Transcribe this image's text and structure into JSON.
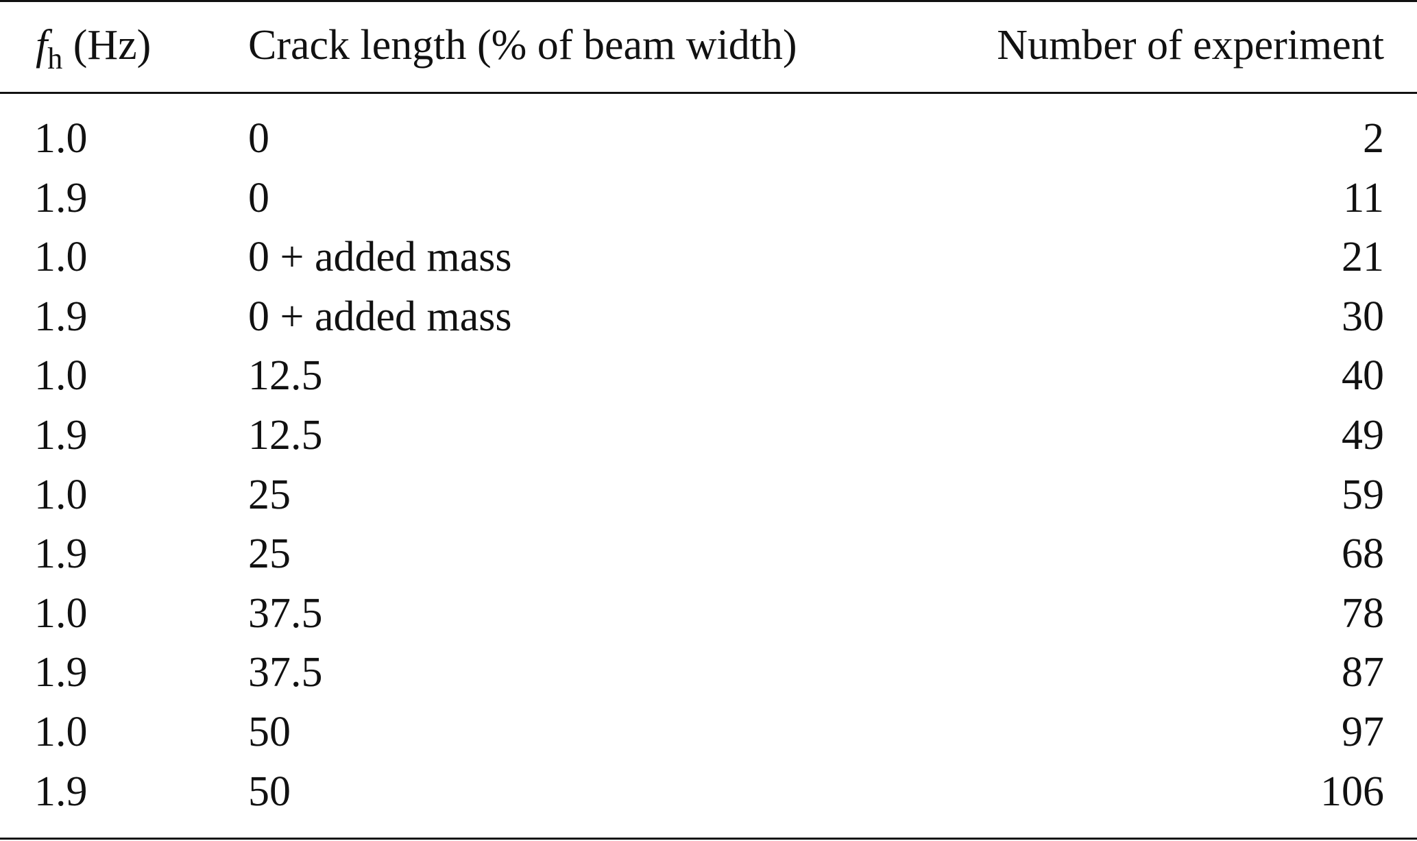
{
  "table": {
    "header": {
      "col1_symbol": "f",
      "col1_subscript": "h",
      "col1_unit": " (Hz)",
      "col2": "Crack length (% of beam width)",
      "col3": "Number of experiment"
    },
    "rows": [
      {
        "fh": "1.0",
        "crack": "0",
        "number": "2"
      },
      {
        "fh": "1.9",
        "crack": "0",
        "number": "11"
      },
      {
        "fh": "1.0",
        "crack": "0 + added mass",
        "number": "21"
      },
      {
        "fh": "1.9",
        "crack": "0 + added mass",
        "number": "30"
      },
      {
        "fh": "1.0",
        "crack": "12.5",
        "number": "40"
      },
      {
        "fh": "1.9",
        "crack": "12.5",
        "number": "49"
      },
      {
        "fh": "1.0",
        "crack": "25",
        "number": "59"
      },
      {
        "fh": "1.9",
        "crack": "25",
        "number": "68"
      },
      {
        "fh": "1.0",
        "crack": "37.5",
        "number": "78"
      },
      {
        "fh": "1.9",
        "crack": "37.5",
        "number": "87"
      },
      {
        "fh": "1.0",
        "crack": "50",
        "number": "97"
      },
      {
        "fh": "1.9",
        "crack": "50",
        "number": "106"
      }
    ]
  }
}
